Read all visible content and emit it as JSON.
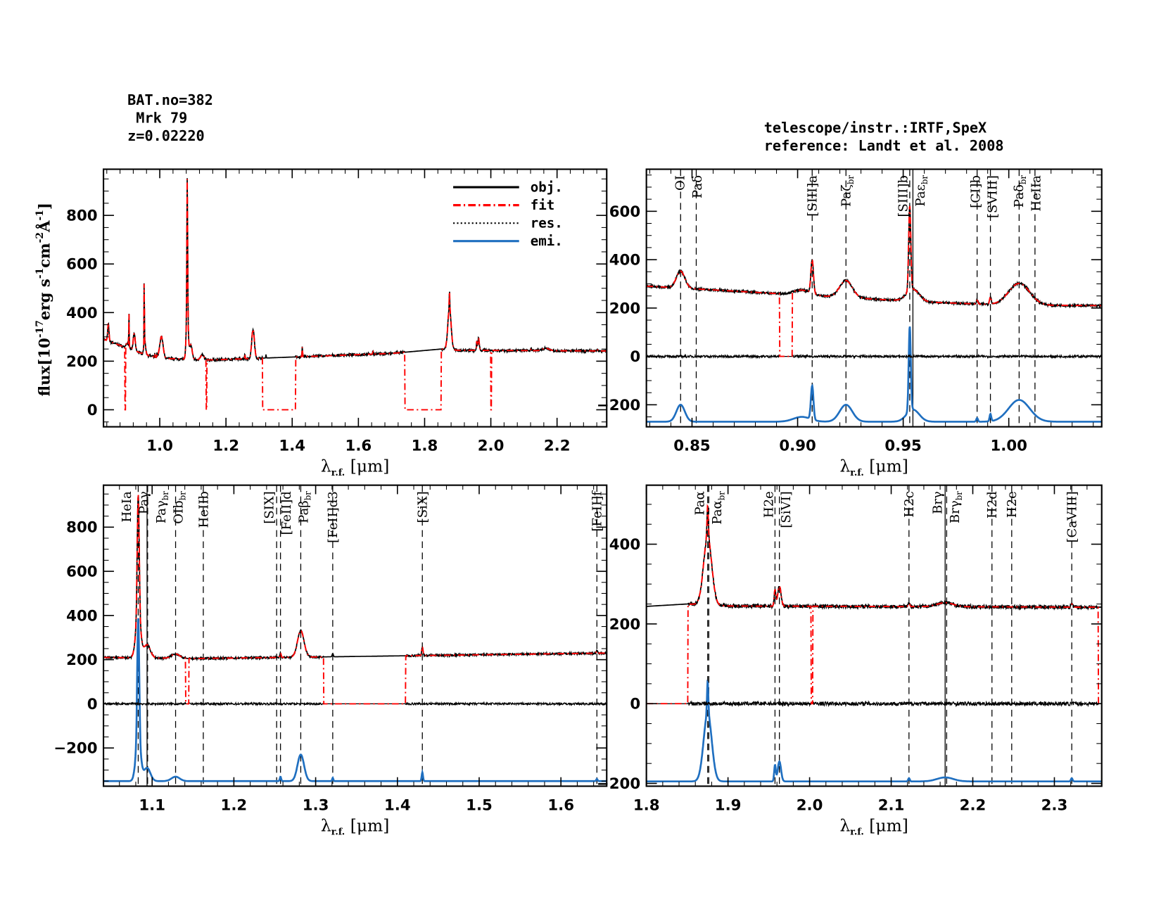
{
  "header": {
    "left": [
      "BAT.no=382",
      " Mrk 79",
      "z=0.02220"
    ],
    "right": [
      "telescope/instr.:IRTF,SpeX",
      "reference: Landt et al. 2008"
    ]
  },
  "colors": {
    "obj": "#000000",
    "fit": "#ff0000",
    "res": "#000000",
    "emi": "#1f6fc0"
  },
  "legend": {
    "items": [
      "obj.",
      "fit",
      "res.",
      "emi."
    ],
    "placement": "top-right of first panel"
  },
  "axis_label": {
    "x_sym": "λ",
    "x_sub": "r.f.",
    "x_unit": "[μm]",
    "y_pre": "flux[10",
    "y_exp": "-17",
    "y_mid": "erg s",
    "y_exp2": "-1",
    "y_mid2": "cm",
    "y_exp3": "-2",
    "y_mid3": "Å",
    "y_exp4": "-1",
    "y_post": "]"
  },
  "chart_data": [
    {
      "type": "line",
      "panel": "overview",
      "xlim": [
        0.83,
        2.35
      ],
      "ylim": [
        -70,
        990
      ],
      "xticks": [
        "1.0",
        "1.2",
        "1.4",
        "1.6",
        "1.8",
        "2.0",
        "2.2"
      ],
      "xtick_values": [
        1.0,
        1.2,
        1.4,
        1.6,
        1.8,
        2.0,
        2.2
      ],
      "yticks": [
        "0",
        "200",
        "400",
        "600",
        "800"
      ],
      "ytick_values": [
        0,
        200,
        400,
        600,
        800
      ],
      "fit_gaps": [
        [
          0.895,
          0.897
        ],
        [
          1.14,
          1.142
        ],
        [
          1.31,
          1.41
        ],
        [
          1.74,
          1.85
        ],
        [
          2.0,
          2.002
        ]
      ],
      "series": [
        "obj.",
        "fit"
      ],
      "lines": []
    },
    {
      "type": "line",
      "panel": "0.83-1.04 um",
      "xlim": [
        0.8284,
        1.044
      ],
      "ylim": [
        -291,
        774
      ],
      "baseline_emi": -270,
      "xticks": [
        "0.85",
        "0.90",
        "0.95",
        "1.00"
      ],
      "xtick_values": [
        0.85,
        0.9,
        0.95,
        1.0
      ],
      "yticks": [
        "-200",
        "0",
        "200",
        "400",
        "600"
      ],
      "ytick_values": [
        -200,
        0,
        200,
        400,
        600
      ],
      "fit_gaps": [
        [
          0.8915,
          0.8975
        ]
      ],
      "lines": [
        {
          "label": "OI",
          "sub": "",
          "x": 0.8446,
          "solid": false
        },
        {
          "label": "Paδ",
          "sub": "",
          "x": 0.852,
          "solid": false
        },
        {
          "label": "[SIII]a",
          "sub": "",
          "x": 0.9069,
          "solid": false
        },
        {
          "label": "Paζ",
          "sub": "br",
          "x": 0.9229,
          "solid": false
        },
        {
          "label": "[SIII]b",
          "sub": "",
          "x": 0.9531,
          "solid": false
        },
        {
          "label": "Paε",
          "sub": "br",
          "x": 0.9546,
          "solid": true
        },
        {
          "label": "[CI]b",
          "sub": "",
          "x": 0.985,
          "solid": false
        },
        {
          "label": "[SVIII]",
          "sub": "",
          "x": 0.9913,
          "solid": false
        },
        {
          "label": "Paδ",
          "sub": "br",
          "x": 1.0049,
          "solid": false
        },
        {
          "label": "HeIIa",
          "sub": "",
          "x": 1.0124,
          "solid": false
        }
      ],
      "emi": [
        [
          0.8446,
          70,
          0.002
        ],
        [
          0.902,
          20,
          0.004
        ],
        [
          0.9069,
          140,
          0.0006
        ],
        [
          0.9229,
          70,
          0.003
        ],
        [
          0.9531,
          350,
          0.0005
        ],
        [
          0.9546,
          50,
          0.003
        ],
        [
          0.985,
          15,
          0.0004
        ],
        [
          0.9913,
          30,
          0.0004
        ],
        [
          1.0049,
          90,
          0.005
        ]
      ]
    },
    {
      "type": "line",
      "panel": "1.04-1.66 um",
      "xlim": [
        1.0405,
        1.656
      ],
      "ylim": [
        -373,
        990
      ],
      "baseline_emi": -350,
      "xticks": [
        "1.1",
        "1.2",
        "1.3",
        "1.4",
        "1.5",
        "1.6"
      ],
      "xtick_values": [
        1.1,
        1.2,
        1.3,
        1.4,
        1.5,
        1.6
      ],
      "yticks": [
        "-200",
        "0",
        "200",
        "400",
        "600",
        "800"
      ],
      "ytick_values": [
        -200,
        0,
        200,
        400,
        600,
        800
      ],
      "fit_gaps": [
        [
          1.141,
          1.145
        ],
        [
          1.31,
          1.41
        ]
      ],
      "lines": [
        {
          "label": "HeIa",
          "sub": "",
          "x": 1.083,
          "solid": false
        },
        {
          "label": "Paγ",
          "sub": "",
          "x": 1.0938,
          "solid": true
        },
        {
          "label": "Paγ",
          "sub": "br",
          "x": 1.0945,
          "solid": false
        },
        {
          "label": "OIb",
          "sub": "br",
          "x": 1.1287,
          "solid": false
        },
        {
          "label": "HeIIb",
          "sub": "",
          "x": 1.1626,
          "solid": false
        },
        {
          "label": "[SIX]",
          "sub": "",
          "x": 1.2523,
          "solid": false
        },
        {
          "label": "[FeII]d",
          "sub": "",
          "x": 1.257,
          "solid": false
        },
        {
          "label": "Paβ",
          "sub": "br",
          "x": 1.2818,
          "solid": false
        },
        {
          "label": "[FeII]d3",
          "sub": "",
          "x": 1.3209,
          "solid": false
        },
        {
          "label": "[SiX]",
          "sub": "",
          "x": 1.4305,
          "solid": false
        },
        {
          "label": "[FeII]f",
          "sub": "",
          "x": 1.644,
          "solid": false
        }
      ],
      "emi": [
        [
          1.083,
          550,
          0.0012
        ],
        [
          1.083,
          190,
          0.003
        ],
        [
          1.0938,
          60,
          0.004
        ],
        [
          1.1287,
          20,
          0.005
        ],
        [
          1.257,
          20,
          0.0008
        ],
        [
          1.2818,
          120,
          0.004
        ],
        [
          1.3209,
          15,
          0.0007
        ],
        [
          1.4305,
          40,
          0.0008
        ],
        [
          1.644,
          10,
          0.0008
        ]
      ]
    },
    {
      "type": "line",
      "panel": "1.80-2.36 um",
      "xlim": [
        1.8,
        2.358
      ],
      "ylim": [
        -207,
        548
      ],
      "baseline_emi": -195,
      "xticks": [
        "1.8",
        "1.9",
        "2.0",
        "2.1",
        "2.2",
        "2.3"
      ],
      "xtick_values": [
        1.8,
        1.9,
        2.0,
        2.1,
        2.2,
        2.3
      ],
      "yticks": [
        "-200",
        "0",
        "200",
        "400"
      ],
      "ytick_values": [
        -200,
        0,
        200,
        400
      ],
      "fit_gaps": [
        [
          1.8,
          1.851
        ],
        [
          2.002,
          2.004
        ],
        [
          2.354,
          2.358
        ]
      ],
      "lines": [
        {
          "label": "Paα",
          "sub": "",
          "x": 1.8751,
          "solid": false
        },
        {
          "label": "Paα",
          "sub": "br",
          "x": 1.8765,
          "solid": false
        },
        {
          "label": "H2e",
          "sub": "",
          "x": 1.9576,
          "solid": false
        },
        {
          "label": "[SiVI]",
          "sub": "",
          "x": 1.963,
          "solid": false
        },
        {
          "label": "H2c",
          "sub": "",
          "x": 2.1218,
          "solid": false
        },
        {
          "label": "Brγ",
          "sub": "",
          "x": 2.1661,
          "solid": true
        },
        {
          "label": "Brγ",
          "sub": "br",
          "x": 2.168,
          "solid": false
        },
        {
          "label": "H2d",
          "sub": "",
          "x": 2.2235,
          "solid": false
        },
        {
          "label": "H2e",
          "sub": "",
          "x": 2.2477,
          "solid": false
        },
        {
          "label": "[CaVIII]",
          "sub": "",
          "x": 2.3213,
          "solid": false
        }
      ],
      "emi": [
        [
          1.8751,
          170,
          0.005
        ],
        [
          1.8751,
          80,
          0.0008
        ],
        [
          1.9576,
          40,
          0.001
        ],
        [
          1.963,
          50,
          0.002
        ],
        [
          2.1218,
          8,
          0.001
        ],
        [
          2.1661,
          10,
          0.01
        ],
        [
          2.3213,
          8,
          0.001
        ]
      ]
    }
  ],
  "continuum": [
    [
      0.83,
      290
    ],
    [
      0.9,
      255
    ],
    [
      0.96,
      225
    ],
    [
      1.0,
      212
    ],
    [
      1.15,
      205
    ],
    [
      1.3,
      212
    ],
    [
      1.5,
      222
    ],
    [
      1.7,
      232
    ],
    [
      1.85,
      250
    ],
    [
      1.9,
      245
    ],
    [
      2.35,
      242
    ]
  ]
}
